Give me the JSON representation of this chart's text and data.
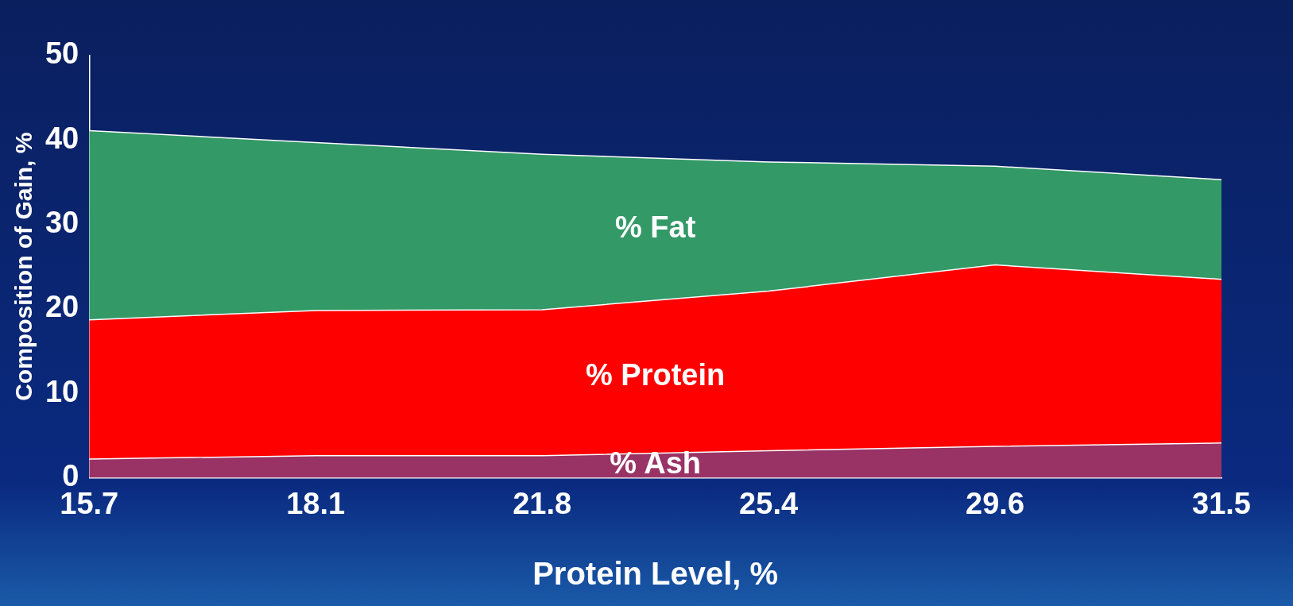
{
  "chart_data": {
    "type": "area",
    "stacked": true,
    "xlabel": "Protein Level, %",
    "ylabel": "Composition of Gain, %",
    "categories": [
      "15.7",
      "18.1",
      "21.8",
      "25.4",
      "29.6",
      "31.5"
    ],
    "series": [
      {
        "name": "% Ash",
        "color": "#993366",
        "values": [
          2.2,
          2.6,
          2.6,
          3.2,
          3.7,
          4.1
        ]
      },
      {
        "name": "% Protein",
        "color": "#ff0000",
        "values": [
          16.5,
          17.2,
          17.3,
          18.9,
          21.5,
          19.4
        ]
      },
      {
        "name": "% Fat",
        "color": "#339966",
        "values": [
          22.4,
          19.9,
          18.4,
          15.3,
          11.7,
          11.8
        ]
      }
    ],
    "ylim": [
      0,
      50
    ],
    "yticks": [
      0,
      10,
      20,
      30,
      40,
      50
    ],
    "grid": false,
    "legend": false
  }
}
